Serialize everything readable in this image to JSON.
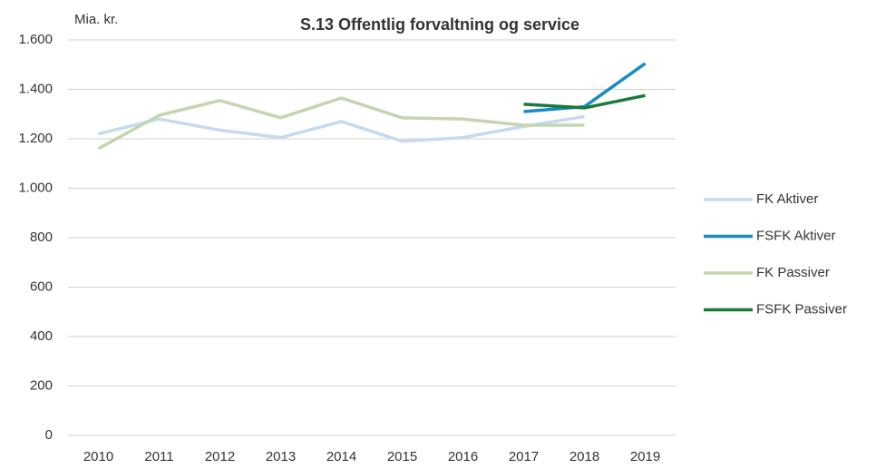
{
  "chart_data": {
    "type": "line",
    "title": "S.13 Offentlig forvaltning og service",
    "ylabel": "Mia. kr.",
    "categories": [
      "2010",
      "2011",
      "2012",
      "2013",
      "2014",
      "2015",
      "2016",
      "2017",
      "2018",
      "2019"
    ],
    "series": [
      {
        "name": "FK Aktiver",
        "color": "#c5daf0",
        "values": [
          1220,
          1280,
          1235,
          1205,
          1270,
          1190,
          1205,
          1250,
          1290,
          null
        ]
      },
      {
        "name": "FSFK Aktiver",
        "color": "#1a8ac6",
        "values": [
          null,
          null,
          null,
          null,
          null,
          null,
          null,
          1310,
          1330,
          1505
        ]
      },
      {
        "name": "FK Passiver",
        "color": "#c3d6b0",
        "values": [
          1160,
          1295,
          1355,
          1285,
          1365,
          1285,
          1280,
          1255,
          1255,
          null
        ]
      },
      {
        "name": "FSFK Passiver",
        "color": "#1a7a3a",
        "values": [
          null,
          null,
          null,
          null,
          null,
          null,
          null,
          1340,
          1325,
          1375
        ]
      }
    ],
    "ylim": [
      0,
      1600
    ],
    "yticks": [
      0,
      200,
      400,
      600,
      800,
      {
        "value": 1000,
        "label": "1.000"
      },
      {
        "value": 1200,
        "label": "1.200"
      },
      {
        "value": 1400,
        "label": "1.400"
      },
      {
        "value": 1600,
        "label": "1.600"
      }
    ],
    "grid": true,
    "legend": "right"
  }
}
